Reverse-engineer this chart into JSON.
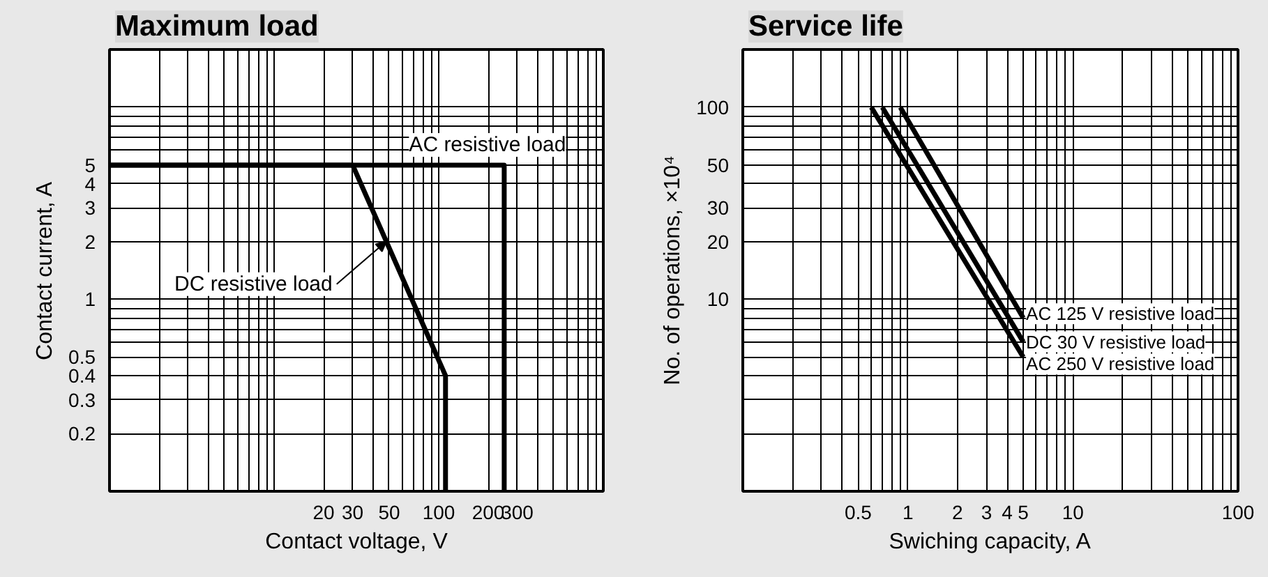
{
  "chart_data": [
    {
      "type": "line",
      "title": "Maximum load",
      "xlabel": "Contact voltage, V",
      "ylabel": "Contact current, A",
      "log": "xy",
      "grid": true,
      "line_style": "solid",
      "marker": "none",
      "xlim": [
        1,
        1000
      ],
      "ylim": [
        0.1,
        20
      ],
      "xticks": [
        {
          "value": 1,
          "label": null
        },
        {
          "value": 2,
          "label": null
        },
        {
          "value": 3,
          "label": null
        },
        {
          "value": 4,
          "label": null
        },
        {
          "value": 5,
          "label": null
        },
        {
          "value": 6,
          "label": null
        },
        {
          "value": 7,
          "label": null
        },
        {
          "value": 8,
          "label": null
        },
        {
          "value": 9,
          "label": null
        },
        {
          "value": 10,
          "label": null
        },
        20,
        30,
        {
          "value": 40,
          "label": null
        },
        50,
        {
          "value": 60,
          "label": null
        },
        {
          "value": 70,
          "label": null
        },
        {
          "value": 80,
          "label": null
        },
        {
          "value": 90,
          "label": null
        },
        100,
        200,
        300,
        {
          "value": 400,
          "label": null
        },
        {
          "value": 500,
          "label": null
        },
        {
          "value": 600,
          "label": null
        },
        {
          "value": 700,
          "label": null
        },
        {
          "value": 800,
          "label": null
        },
        {
          "value": 900,
          "label": null
        },
        {
          "value": 1000,
          "label": null
        }
      ],
      "yticks": [
        {
          "value": 0.1,
          "label": null
        },
        0.2,
        0.3,
        0.4,
        0.5,
        {
          "value": 0.6,
          "label": null
        },
        {
          "value": 0.7,
          "label": null
        },
        {
          "value": 0.8,
          "label": null
        },
        {
          "value": 0.9,
          "label": null
        },
        1,
        2,
        3,
        4,
        5,
        {
          "value": 6,
          "label": null
        },
        {
          "value": 7,
          "label": null
        },
        {
          "value": 8,
          "label": null
        },
        {
          "value": 9,
          "label": null
        },
        {
          "value": 10,
          "label": null
        },
        {
          "value": 20,
          "label": null
        }
      ],
      "series": [
        {
          "color": "#000000",
          "x": [
            1,
            250,
            250
          ],
          "values": [
            5,
            5,
            0.1
          ]
        },
        {
          "color": "#000000",
          "x": [
            1,
            30,
            110,
            110
          ],
          "values": [
            5,
            5,
            0.4,
            0.1
          ]
        }
      ],
      "annotations": [
        {
          "text": "AC resistive load",
          "x": 250,
          "y": 5
        },
        {
          "text": "DC resistive load",
          "x": 48,
          "y": 2
        }
      ]
    },
    {
      "type": "line",
      "title": "Service life",
      "xlabel": "Swiching capacity, A",
      "ylabel": "No. of operations, ×10⁴",
      "log": "xy",
      "grid": true,
      "line_style": "solid",
      "marker": "none",
      "xlim": [
        0.1,
        100
      ],
      "ylim": [
        1,
        200
      ],
      "xticks": [
        {
          "value": 0.1,
          "label": null
        },
        {
          "value": 0.2,
          "label": null
        },
        {
          "value": 0.3,
          "label": null
        },
        {
          "value": 0.4,
          "label": null
        },
        0.5,
        {
          "value": 0.6,
          "label": null
        },
        {
          "value": 0.7,
          "label": null
        },
        {
          "value": 0.8,
          "label": null
        },
        {
          "value": 0.9,
          "label": null
        },
        1,
        2,
        3,
        4,
        5,
        {
          "value": 6,
          "label": null
        },
        {
          "value": 7,
          "label": null
        },
        {
          "value": 8,
          "label": null
        },
        {
          "value": 9,
          "label": null
        },
        10,
        {
          "value": 20,
          "label": null
        },
        {
          "value": 30,
          "label": null
        },
        {
          "value": 40,
          "label": null
        },
        {
          "value": 50,
          "label": null
        },
        {
          "value": 60,
          "label": null
        },
        {
          "value": 70,
          "label": null
        },
        {
          "value": 80,
          "label": null
        },
        {
          "value": 90,
          "label": null
        },
        100
      ],
      "yticks": [
        {
          "value": 1,
          "label": null
        },
        {
          "value": 2,
          "label": null
        },
        {
          "value": 3,
          "label": null
        },
        {
          "value": 4,
          "label": null
        },
        {
          "value": 5,
          "label": null
        },
        {
          "value": 6,
          "label": null
        },
        {
          "value": 7,
          "label": null
        },
        {
          "value": 8,
          "label": null
        },
        {
          "value": 9,
          "label": null
        },
        10,
        20,
        30,
        {
          "value": 40,
          "label": null
        },
        50,
        {
          "value": 60,
          "label": null
        },
        {
          "value": 70,
          "label": null
        },
        {
          "value": 80,
          "label": null
        },
        {
          "value": 90,
          "label": null
        },
        100,
        {
          "value": 200,
          "label": null
        }
      ],
      "series": [
        {
          "color": "#000000",
          "x": [
            0.9,
            5
          ],
          "values": [
            100,
            8
          ]
        },
        {
          "color": "#000000",
          "x": [
            0.7,
            5
          ],
          "values": [
            100,
            6
          ]
        },
        {
          "color": "#000000",
          "x": [
            0.6,
            5
          ],
          "values": [
            100,
            5
          ]
        }
      ],
      "annotations": [
        {
          "text": "AC 125 V resistive load",
          "x": 5,
          "y": 8
        },
        {
          "text": "DC 30 V resistive load",
          "x": 5,
          "y": 6
        },
        {
          "text": "AC 250 V resistive load",
          "x": 5,
          "y": 5
        }
      ]
    }
  ]
}
